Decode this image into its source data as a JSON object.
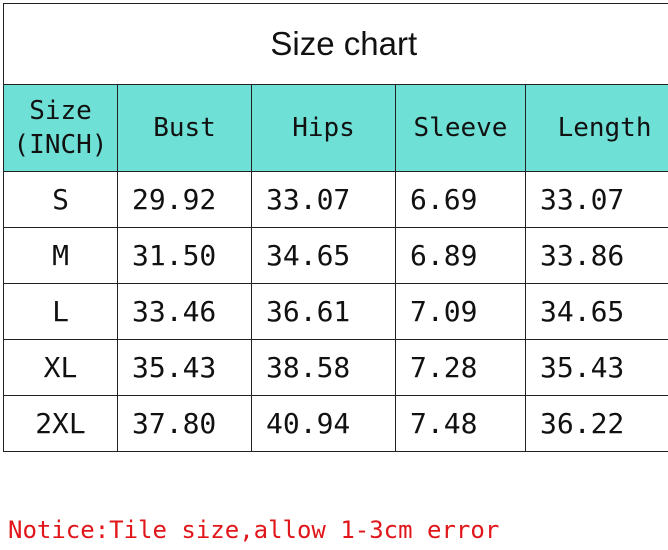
{
  "chart_data": {
    "type": "table",
    "title": "Size chart",
    "columns": [
      "Size (INCH)",
      "Bust",
      "Hips",
      "Sleeve",
      "Length"
    ],
    "rows": [
      [
        "S",
        "29.92",
        "33.07",
        "6.69",
        "33.07"
      ],
      [
        "M",
        "31.50",
        "34.65",
        "6.89",
        "33.86"
      ],
      [
        "L",
        "33.46",
        "36.61",
        "7.09",
        "34.65"
      ],
      [
        "XL",
        "35.43",
        "38.58",
        "7.28",
        "35.43"
      ],
      [
        "2XL",
        "37.80",
        "40.94",
        "7.48",
        "36.22"
      ]
    ],
    "header_color": "#6fe0d6"
  },
  "notice": "Notice:Tile size,allow 1-3cm error",
  "notice_color": "#e0161b"
}
